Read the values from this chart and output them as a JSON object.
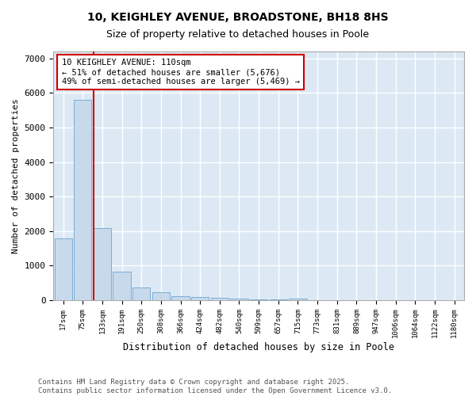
{
  "title1": "10, KEIGHLEY AVENUE, BROADSTONE, BH18 8HS",
  "title2": "Size of property relative to detached houses in Poole",
  "xlabel": "Distribution of detached houses by size in Poole",
  "ylabel": "Number of detached properties",
  "bar_labels": [
    "17sqm",
    "75sqm",
    "133sqm",
    "191sqm",
    "250sqm",
    "308sqm",
    "366sqm",
    "424sqm",
    "482sqm",
    "540sqm",
    "599sqm",
    "657sqm",
    "715sqm",
    "773sqm",
    "831sqm",
    "889sqm",
    "947sqm",
    "1006sqm",
    "1064sqm",
    "1122sqm",
    "1180sqm"
  ],
  "bar_values": [
    1800,
    5800,
    2080,
    830,
    360,
    220,
    110,
    90,
    70,
    55,
    30,
    25,
    55,
    5,
    3,
    2,
    1,
    1,
    1,
    0,
    0
  ],
  "bar_color": "#c8d9ec",
  "bar_edgecolor": "#7aadd4",
  "bar_linewidth": 0.7,
  "red_line_x": 1.55,
  "red_line_color": "#cc0000",
  "annotation_text": "10 KEIGHLEY AVENUE: 110sqm\n← 51% of detached houses are smaller (5,676)\n49% of semi-detached houses are larger (5,469) →",
  "annotation_box_color": "#ffffff",
  "annotation_box_edgecolor": "#cc0000",
  "ylim": [
    0,
    7200
  ],
  "yticks": [
    0,
    1000,
    2000,
    3000,
    4000,
    5000,
    6000,
    7000
  ],
  "background_color": "#ffffff",
  "plot_bg_color": "#dce9f5",
  "grid_color": "#ffffff",
  "footer1": "Contains HM Land Registry data © Crown copyright and database right 2025.",
  "footer2": "Contains public sector information licensed under the Open Government Licence v3.0."
}
